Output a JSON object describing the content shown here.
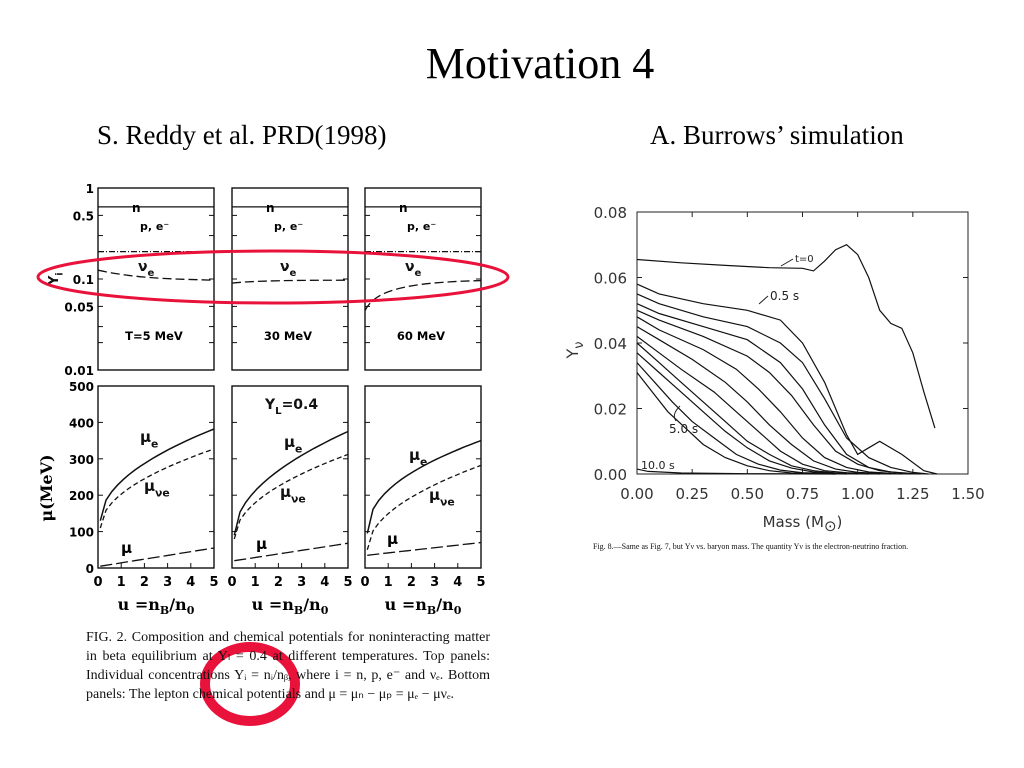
{
  "slide": {
    "title": "Motivation 4",
    "left_subtitle": "S. Reddy et al. PRD(1998)",
    "right_subtitle": "A. Burrows’ simulation"
  },
  "reddy": {
    "top_panels": [
      {
        "label": "T=5 MeV",
        "n": "n",
        "pe": "p, e⁻",
        "nue": "ν",
        "nue_sub": "e"
      },
      {
        "label": "30 MeV",
        "n": "n",
        "pe": "p, e⁻",
        "nue": "ν",
        "nue_sub": "e"
      },
      {
        "label": "60 MeV",
        "n": "n",
        "pe": "p, e⁻",
        "nue": "ν",
        "nue_sub": "e"
      }
    ],
    "top_y_ticks": [
      "1",
      "0.5",
      "0.1",
      "0.05",
      "0.01"
    ],
    "top_ylabel": "Y",
    "top_ylabel_sub": "i",
    "bottom_y_ticks": [
      "500",
      "400",
      "300",
      "200",
      "100",
      "0"
    ],
    "bottom_ylabel": "μ(MeV)",
    "yl_label": "Y",
    "yl_label_sub": "L",
    "yl_value": "=0.4",
    "mu_e": "μ",
    "mu_e_sub": "e",
    "mu_nue": "μ",
    "mu_nue_sub": "νe",
    "mu": "μ",
    "x_ticks": [
      "0",
      "1",
      "2",
      "3",
      "4",
      "5"
    ],
    "xlabel": "u =n",
    "xlabel_sub1": "B",
    "xlabel_mid": "/n",
    "xlabel_sub2": "0",
    "caption": "FIG. 2. Composition and chemical potentials for noninteracting matter in beta equilibrium at Yₗ = 0.4 at different temperatures. Top panels: Individual concentrations Yᵢ = nᵢ/nᵦ, where i = n, p, e⁻ and νₑ. Bottom panels: The lepton chemical potentials and μ = μₙ − μₚ = μₑ − μνₑ."
  },
  "burrows": {
    "ylabel": "Y",
    "ylabel_sub": "ν",
    "xlabel": "Mass (M",
    "xlabel_sun": "⊙",
    "xlabel_close": ")",
    "annot_t0": "t=0",
    "annot_05": "0.5 s",
    "annot_50": "5.0 s",
    "annot_100": "10.0 s",
    "caption": "Fig. 8.—Same as Fig. 7, but Yν vs. baryon mass. The quantity Yν is the electron-neutrino fraction."
  },
  "highlight_color": "#e8123a",
  "chart_data": {
    "type": "line",
    "title": "",
    "xlabel": "Mass (M⊙)",
    "ylabel": "Yν",
    "xlim": [
      0.0,
      1.5
    ],
    "ylim": [
      0.0,
      0.08
    ],
    "x_ticks": [
      "0.00",
      "0.25",
      "0.50",
      "0.75",
      "1.00",
      "1.25",
      "1.50"
    ],
    "y_ticks": [
      "0.00",
      "0.02",
      "0.04",
      "0.06",
      "0.08"
    ],
    "grid": false,
    "series": [
      {
        "name": "t=0",
        "x": [
          0.0,
          0.2,
          0.4,
          0.6,
          0.75,
          0.8,
          0.85,
          0.9,
          0.95,
          1.0,
          1.05,
          1.1,
          1.15,
          1.2,
          1.25,
          1.3,
          1.35
        ],
        "y": [
          0.0655,
          0.0645,
          0.0637,
          0.063,
          0.0628,
          0.062,
          0.065,
          0.0685,
          0.07,
          0.067,
          0.06,
          0.05,
          0.046,
          0.0445,
          0.037,
          0.025,
          0.014
        ]
      },
      {
        "name": "0.5 s",
        "x": [
          0.0,
          0.1,
          0.3,
          0.5,
          0.65,
          0.75,
          0.85,
          0.95,
          1.0,
          1.05,
          1.1,
          1.2,
          1.3,
          1.36
        ],
        "y": [
          0.058,
          0.055,
          0.052,
          0.05,
          0.047,
          0.04,
          0.028,
          0.012,
          0.006,
          0.008,
          0.01,
          0.006,
          0.001,
          0.0
        ]
      },
      {
        "x": [
          0.0,
          0.1,
          0.3,
          0.5,
          0.65,
          0.75,
          0.85,
          0.95,
          1.05,
          1.15,
          1.25,
          1.32
        ],
        "y": [
          0.055,
          0.052,
          0.048,
          0.045,
          0.04,
          0.034,
          0.023,
          0.011,
          0.005,
          0.002,
          0.0005,
          0.0
        ]
      },
      {
        "x": [
          0.0,
          0.1,
          0.3,
          0.5,
          0.65,
          0.75,
          0.85,
          0.95,
          1.05,
          1.15,
          1.28
        ],
        "y": [
          0.052,
          0.049,
          0.045,
          0.041,
          0.034,
          0.026,
          0.015,
          0.006,
          0.002,
          0.0006,
          0.0
        ]
      },
      {
        "x": [
          0.0,
          0.1,
          0.3,
          0.5,
          0.6,
          0.7,
          0.8,
          0.9,
          1.0,
          1.1,
          1.24
        ],
        "y": [
          0.05,
          0.047,
          0.042,
          0.036,
          0.031,
          0.024,
          0.015,
          0.007,
          0.003,
          0.001,
          0.0
        ]
      },
      {
        "x": [
          0.0,
          0.1,
          0.3,
          0.45,
          0.55,
          0.65,
          0.75,
          0.85,
          0.95,
          1.05,
          1.2
        ],
        "y": [
          0.048,
          0.044,
          0.038,
          0.032,
          0.026,
          0.019,
          0.011,
          0.005,
          0.002,
          0.0006,
          0.0
        ]
      },
      {
        "x": [
          0.0,
          0.1,
          0.25,
          0.4,
          0.5,
          0.6,
          0.7,
          0.8,
          0.9,
          1.0,
          1.15
        ],
        "y": [
          0.045,
          0.041,
          0.035,
          0.028,
          0.022,
          0.015,
          0.009,
          0.004,
          0.0015,
          0.0005,
          0.0
        ]
      },
      {
        "x": [
          0.0,
          0.1,
          0.2,
          0.35,
          0.45,
          0.55,
          0.65,
          0.75,
          0.85,
          0.95,
          1.1
        ],
        "y": [
          0.042,
          0.037,
          0.032,
          0.025,
          0.019,
          0.013,
          0.007,
          0.003,
          0.001,
          0.0004,
          0.0
        ]
      },
      {
        "x": [
          0.0,
          0.1,
          0.2,
          0.3,
          0.4,
          0.5,
          0.6,
          0.7,
          0.8,
          0.9,
          1.05
        ],
        "y": [
          0.04,
          0.034,
          0.028,
          0.022,
          0.016,
          0.01,
          0.006,
          0.0025,
          0.001,
          0.0003,
          0.0
        ]
      },
      {
        "x": [
          0.0,
          0.1,
          0.2,
          0.3,
          0.4,
          0.5,
          0.6,
          0.7,
          0.8,
          1.0
        ],
        "y": [
          0.037,
          0.031,
          0.025,
          0.019,
          0.013,
          0.008,
          0.004,
          0.0018,
          0.0006,
          0.0
        ]
      },
      {
        "x": [
          0.0,
          0.08,
          0.16,
          0.25,
          0.35,
          0.45,
          0.55,
          0.65,
          0.75,
          0.95
        ],
        "y": [
          0.034,
          0.028,
          0.022,
          0.016,
          0.011,
          0.006,
          0.003,
          0.0012,
          0.0004,
          0.0
        ]
      },
      {
        "name": "5.0 s",
        "x": [
          0.0,
          0.07,
          0.14,
          0.22,
          0.3,
          0.4,
          0.5,
          0.6,
          0.7,
          0.9
        ],
        "y": [
          0.031,
          0.025,
          0.019,
          0.014,
          0.009,
          0.005,
          0.0025,
          0.001,
          0.0003,
          0.0
        ]
      },
      {
        "name": "10.0 s",
        "x": [
          0.0,
          0.05,
          0.2,
          0.5,
          0.9
        ],
        "y": [
          0.0015,
          0.0008,
          0.0003,
          0.0001,
          0.0
        ]
      }
    ]
  }
}
